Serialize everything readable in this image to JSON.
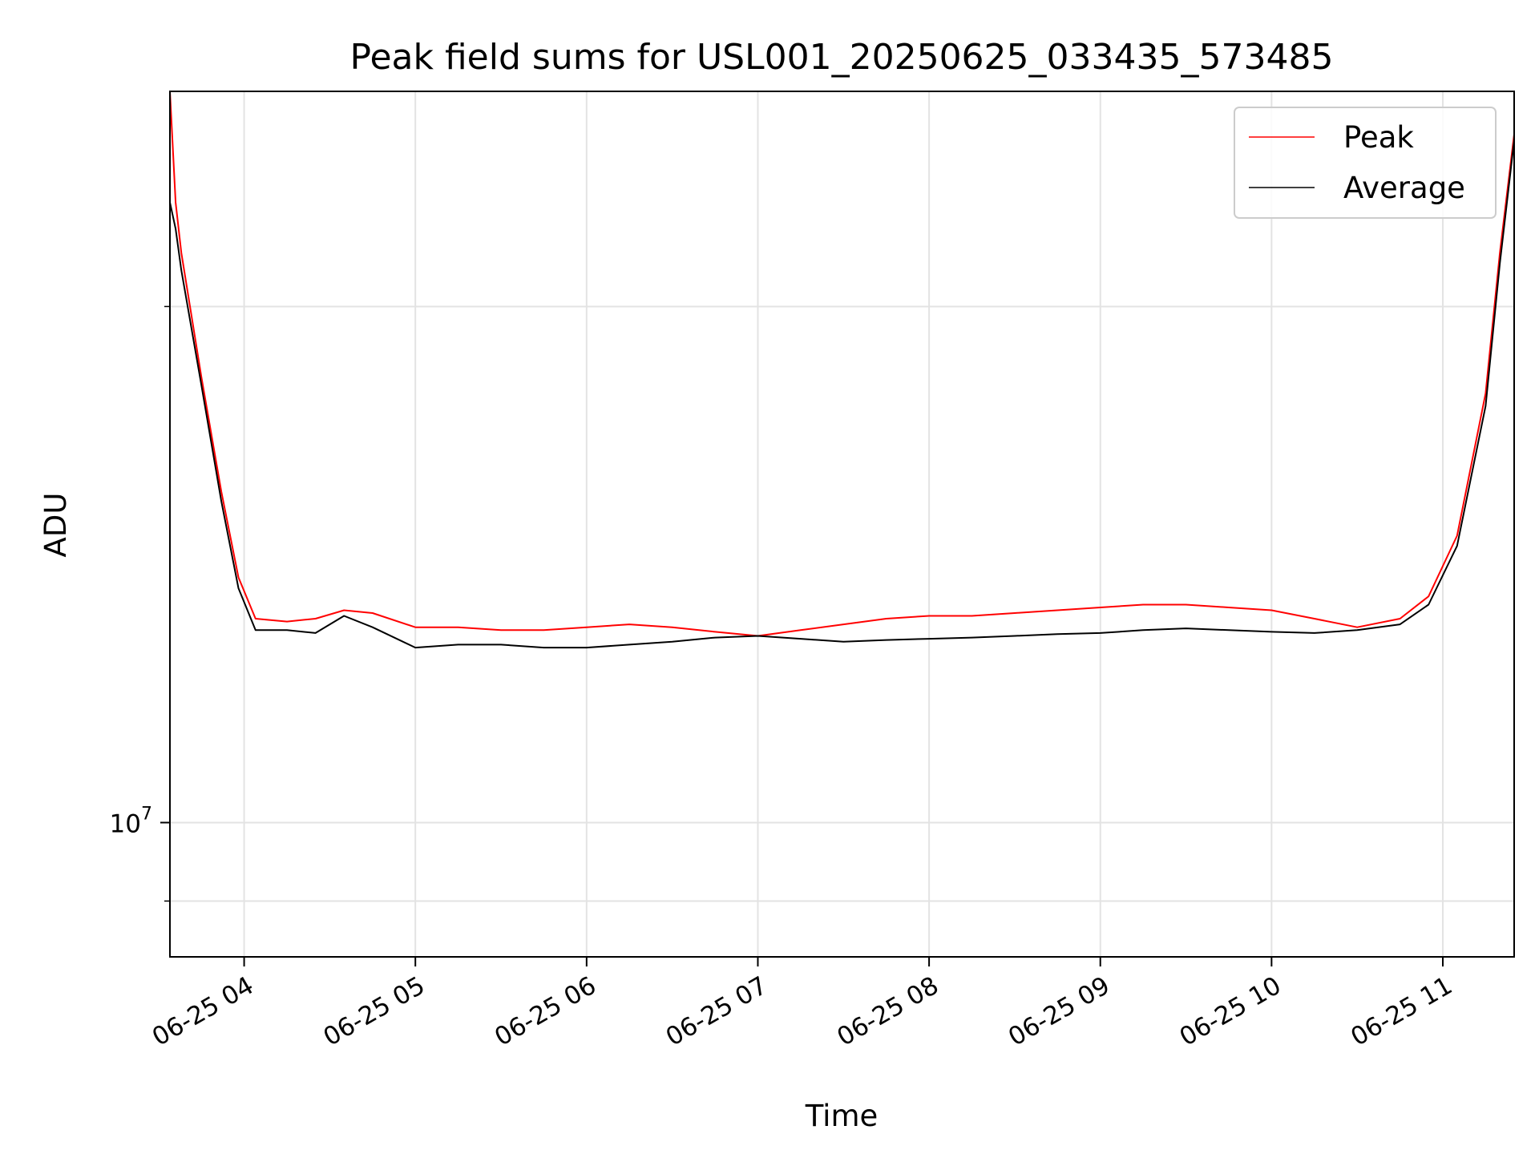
{
  "chart_data": {
    "type": "line",
    "title": "Peak field sums for USL001_20250625_033435_573485",
    "xlabel": "Time",
    "ylabel": "ADU",
    "xlim": [
      "06-25 03:34",
      "06-25 11:25"
    ],
    "ylim": [
      8350000,
      26700000
    ],
    "yscale": "log",
    "grid": true,
    "legend_position": "top-right",
    "x_ticks": [
      "06-25 04",
      "06-25 05",
      "06-25 06",
      "06-25 07",
      "06-25 08",
      "06-25 09",
      "06-25 10",
      "06-25 11"
    ],
    "y_ticks": [
      {
        "value": 10000000,
        "base": "10",
        "exp": "7"
      }
    ],
    "colors": {
      "Peak": "#ff0000",
      "Average": "#000000"
    },
    "series": [
      {
        "name": "Peak",
        "x": [
          "06-25 03:34",
          "06-25 03:36",
          "06-25 03:38",
          "06-25 03:45",
          "06-25 03:52",
          "06-25 03:58",
          "06-25 04:04",
          "06-25 04:15",
          "06-25 04:25",
          "06-25 04:35",
          "06-25 04:45",
          "06-25 05:00",
          "06-25 05:15",
          "06-25 05:30",
          "06-25 05:45",
          "06-25 06:00",
          "06-25 06:15",
          "06-25 06:30",
          "06-25 06:45",
          "06-25 07:00",
          "06-25 07:15",
          "06-25 07:30",
          "06-25 07:45",
          "06-25 08:00",
          "06-25 08:15",
          "06-25 08:30",
          "06-25 08:45",
          "06-25 09:00",
          "06-25 09:15",
          "06-25 09:30",
          "06-25 09:45",
          "06-25 10:00",
          "06-25 10:15",
          "06-25 10:30",
          "06-25 10:45",
          "06-25 10:55",
          "06-25 11:05",
          "06-25 11:15",
          "06-25 11:20",
          "06-25 11:25"
        ],
        "y": [
          26700000,
          23000000,
          21500000,
          18200000,
          15600000,
          13900000,
          13150000,
          13100000,
          13150000,
          13300000,
          13250000,
          13000000,
          13000000,
          12950000,
          12950000,
          13000000,
          13050000,
          13000000,
          12920000,
          12850000,
          12950000,
          13050000,
          13150000,
          13200000,
          13200000,
          13250000,
          13300000,
          13350000,
          13400000,
          13400000,
          13350000,
          13300000,
          13150000,
          13000000,
          13150000,
          13550000,
          14700000,
          17800000,
          21500000,
          25200000
        ]
      },
      {
        "name": "Average",
        "x": [
          "06-25 03:34",
          "06-25 03:36",
          "06-25 03:38",
          "06-25 03:45",
          "06-25 03:52",
          "06-25 03:58",
          "06-25 04:04",
          "06-25 04:15",
          "06-25 04:25",
          "06-25 04:35",
          "06-25 04:45",
          "06-25 05:00",
          "06-25 05:15",
          "06-25 05:30",
          "06-25 05:45",
          "06-25 06:00",
          "06-25 06:15",
          "06-25 06:30",
          "06-25 06:45",
          "06-25 07:00",
          "06-25 07:15",
          "06-25 07:30",
          "06-25 07:45",
          "06-25 08:00",
          "06-25 08:15",
          "06-25 08:30",
          "06-25 08:45",
          "06-25 09:00",
          "06-25 09:15",
          "06-25 09:30",
          "06-25 09:45",
          "06-25 10:00",
          "06-25 10:15",
          "06-25 10:30",
          "06-25 10:45",
          "06-25 10:55",
          "06-25 11:05",
          "06-25 11:15",
          "06-25 11:20",
          "06-25 11:25"
        ],
        "y": [
          23000000,
          22200000,
          21000000,
          18000000,
          15400000,
          13700000,
          12950000,
          12950000,
          12900000,
          13200000,
          13000000,
          12650000,
          12700000,
          12700000,
          12650000,
          12650000,
          12700000,
          12750000,
          12820000,
          12850000,
          12800000,
          12750000,
          12780000,
          12800000,
          12820000,
          12850000,
          12880000,
          12900000,
          12950000,
          12980000,
          12950000,
          12920000,
          12900000,
          12950000,
          13050000,
          13400000,
          14500000,
          17500000,
          21200000,
          25000000
        ]
      }
    ]
  }
}
